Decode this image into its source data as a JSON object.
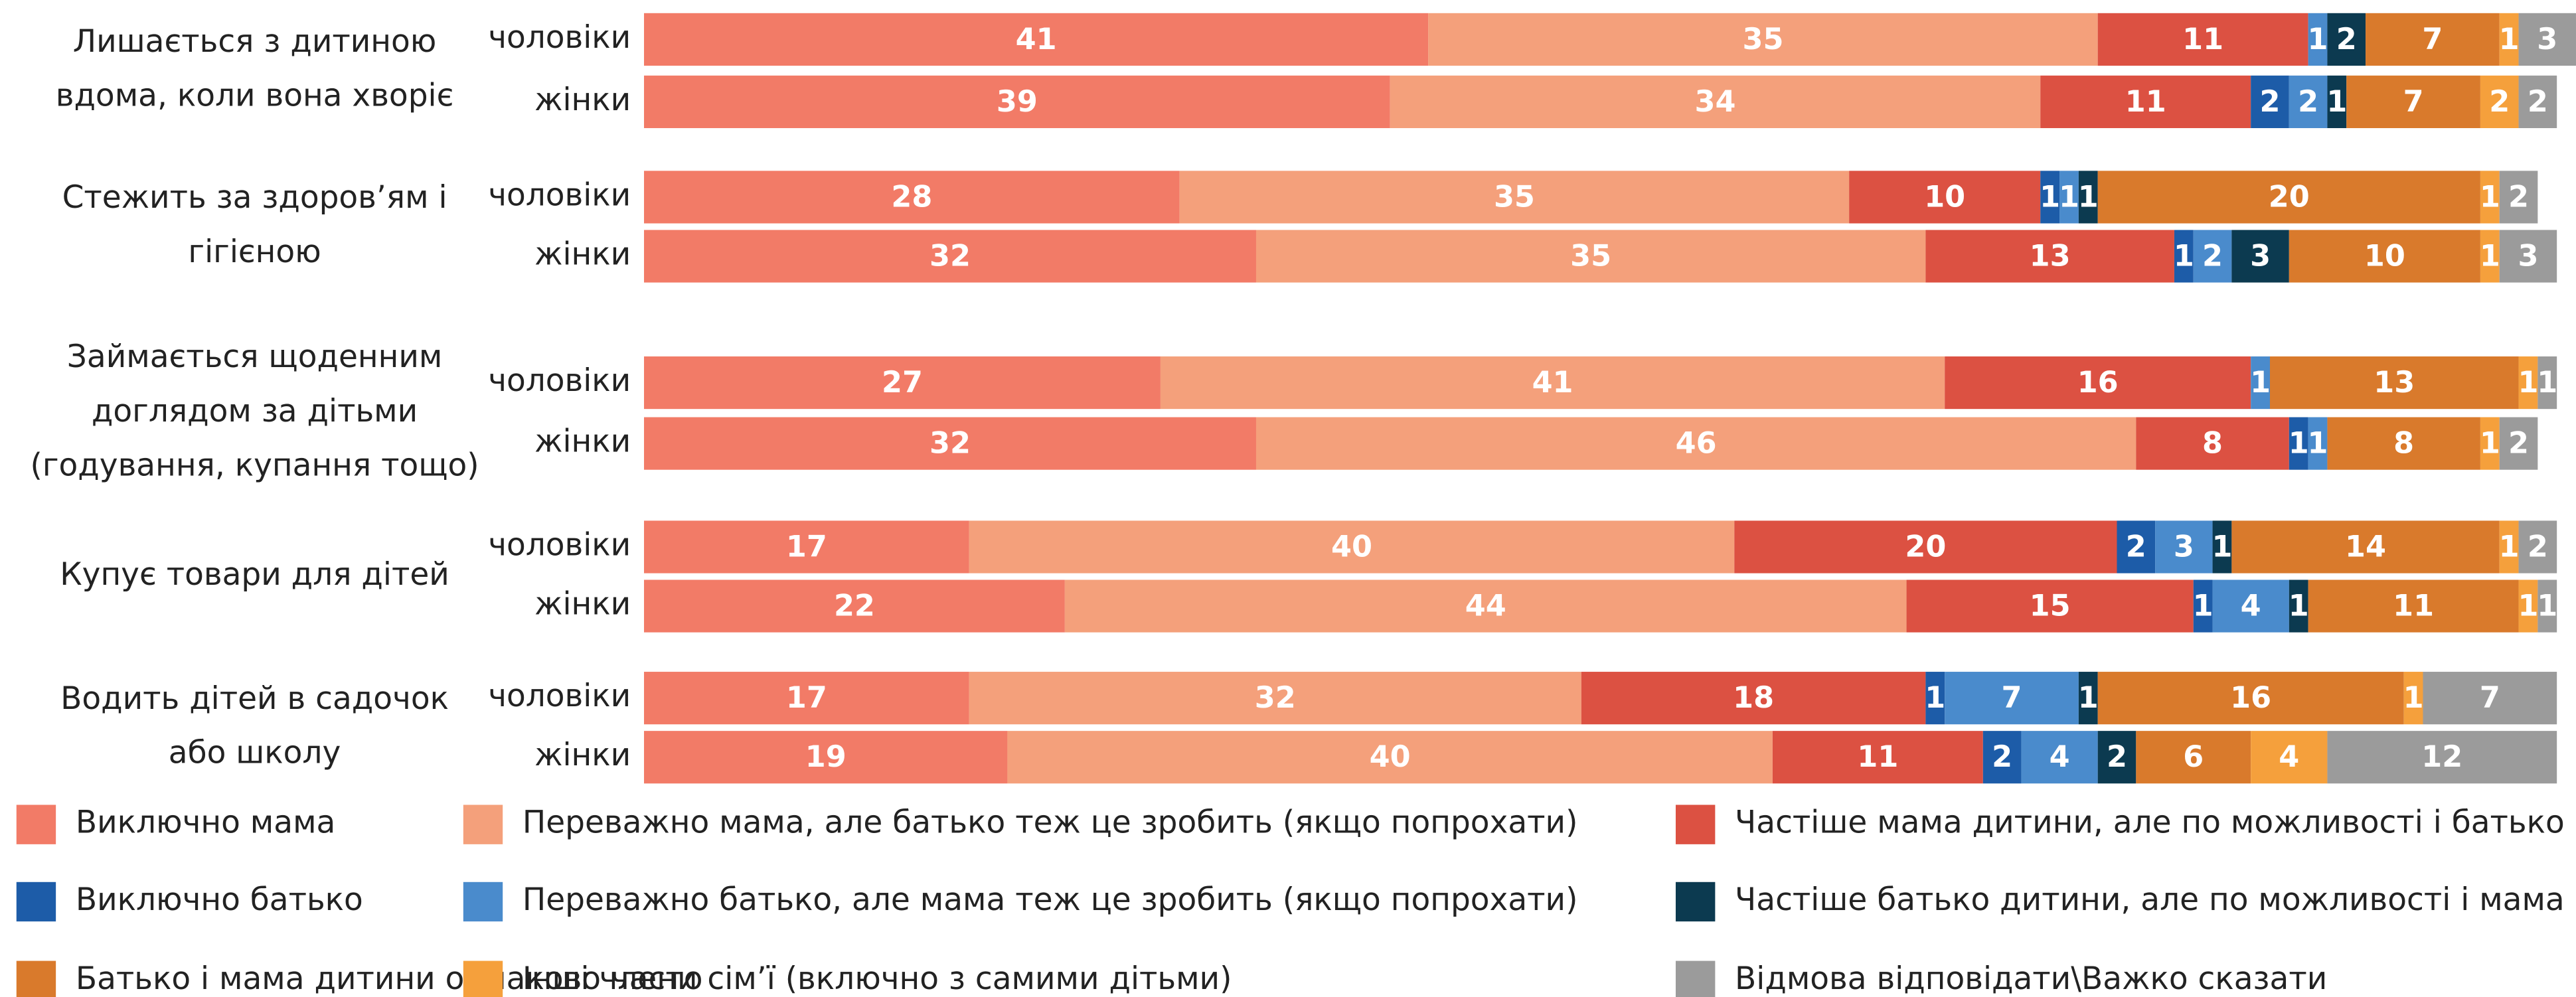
{
  "chart_data": {
    "type": "stacked-barh",
    "groups": [
      {
        "label": [
          "Лишається з дитиною",
          "вдома, коли вона хворіє"
        ],
        "bars": [
          "чоловіки",
          "жінки"
        ]
      },
      {
        "label": [
          "Стежить за здоров’ям і",
          "гігієною"
        ],
        "bars": [
          "чоловіки",
          "жінки"
        ]
      },
      {
        "label": [
          "Займається щоденним",
          "доглядом за дітьми",
          "(годування, купання тощо)"
        ],
        "bars": [
          "чоловіки",
          "жінки"
        ]
      },
      {
        "label": [
          "Купує товари для дітей"
        ],
        "bars": [
          "чоловіки",
          "жінки"
        ]
      },
      {
        "label": [
          "Водить дітей в садочок",
          "або школу"
        ],
        "bars": [
          "чоловіки",
          "жінки"
        ]
      }
    ],
    "series": [
      {
        "name": "Виключно мама",
        "color": "#f27b67",
        "values": [
          41,
          39,
          28,
          32,
          27,
          32,
          17,
          22,
          17,
          19
        ]
      },
      {
        "name": "Переважно мама, але батько теж це зробить (якщо попрохати)",
        "color": "#f4a07b",
        "values": [
          35,
          34,
          35,
          35,
          41,
          46,
          40,
          44,
          32,
          40
        ]
      },
      {
        "name": "Частіше мама дитини, але по можливості і батько",
        "color": "#dc5142",
        "values": [
          11,
          11,
          10,
          13,
          16,
          8,
          20,
          15,
          18,
          11
        ]
      },
      {
        "name": "Виключно батько",
        "color": "#1d5ca8",
        "values": [
          0,
          2,
          1,
          1,
          0,
          1,
          2,
          1,
          1,
          2
        ]
      },
      {
        "name": "Переважно батько, але мама теж це зробить (якщо попрохати)",
        "color": "#4a8bcc",
        "values": [
          1,
          2,
          1,
          2,
          1,
          1,
          3,
          4,
          7,
          4
        ]
      },
      {
        "name": "Частіше батько дитини, але по можливості і мама",
        "color": "#0c3a50",
        "values": [
          2,
          1,
          1,
          3,
          0,
          0,
          1,
          1,
          1,
          2
        ]
      },
      {
        "name": "Батько і мама дитини однаково часто",
        "color": "#d97a2c",
        "values": [
          7,
          7,
          20,
          10,
          13,
          8,
          14,
          11,
          16,
          6
        ]
      },
      {
        "name": "Інші члени сім’ї (включно з самими дітьми)",
        "color": "#f5a03c",
        "values": [
          1,
          2,
          1,
          1,
          1,
          1,
          1,
          1,
          1,
          4
        ]
      },
      {
        "name": "Відмова відповідати\\Важко сказати",
        "color": "#9b9b9b",
        "values": [
          3,
          2,
          2,
          3,
          1,
          2,
          2,
          1,
          7,
          12
        ]
      }
    ]
  }
}
